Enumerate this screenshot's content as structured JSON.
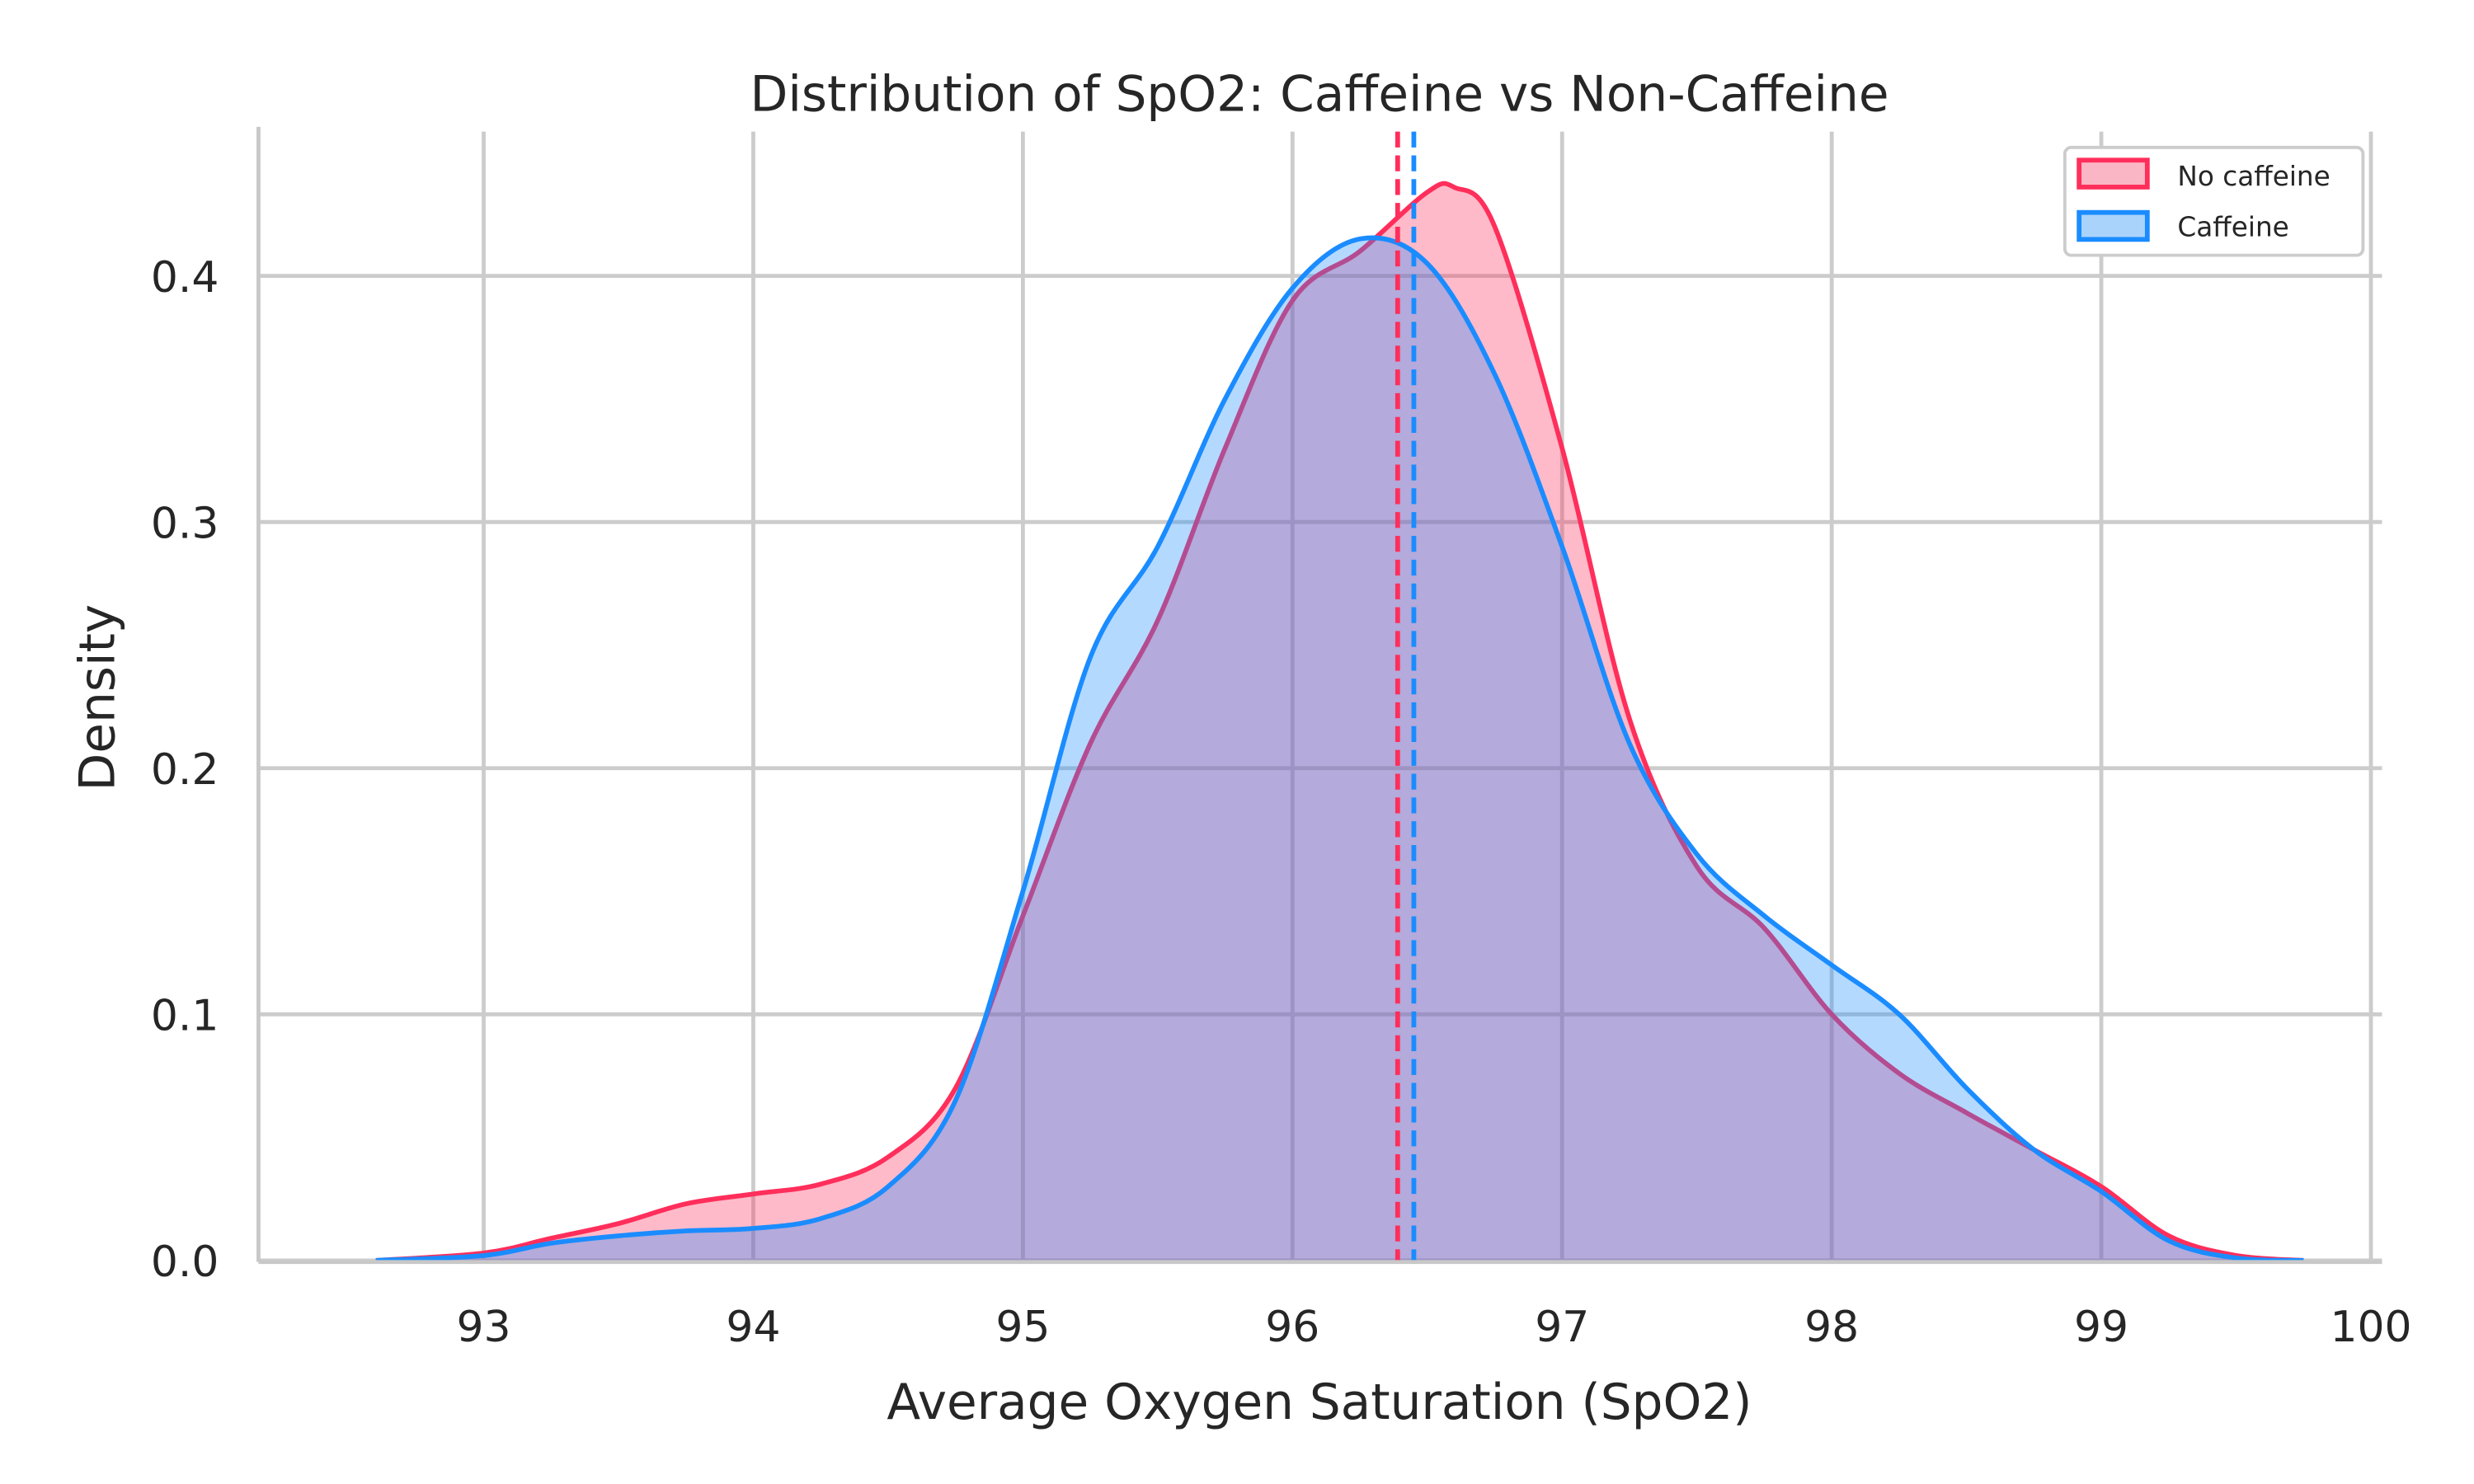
{
  "chart_data": {
    "type": "area",
    "title": "Distribution of SpO2: Caffeine vs Non-Caffeine",
    "xlabel": "Average Oxygen Saturation (SpO2)",
    "ylabel": "Density",
    "xlim": [
      92.17,
      100.03
    ],
    "ylim": [
      0,
      0.46
    ],
    "xticks": [
      "93",
      "94",
      "95",
      "96",
      "97",
      "98",
      "99",
      "100"
    ],
    "yticks": [
      "0.0",
      "0.1",
      "0.2",
      "0.3",
      "0.4"
    ],
    "grid": true,
    "legend_position": "top-right",
    "series": [
      {
        "name": "No caffeine",
        "color": "#ff2e5b",
        "fill": "#fbb6c5",
        "mean": 96.39,
        "x": [
          92.6,
          93,
          93.25,
          93.5,
          93.75,
          94,
          94.25,
          94.5,
          94.75,
          95,
          95.25,
          95.5,
          95.75,
          96,
          96.25,
          96.5,
          96.6,
          96.75,
          97,
          97.25,
          97.5,
          97.75,
          98,
          98.25,
          98.5,
          98.75,
          99,
          99.25,
          99.5,
          99.75
        ],
        "y": [
          0,
          0.003,
          0.009,
          0.015,
          0.023,
          0.027,
          0.031,
          0.042,
          0.07,
          0.14,
          0.21,
          0.26,
          0.33,
          0.39,
          0.41,
          0.434,
          0.436,
          0.42,
          0.33,
          0.22,
          0.16,
          0.135,
          0.1,
          0.076,
          0.06,
          0.045,
          0.03,
          0.01,
          0.002,
          0
        ]
      },
      {
        "name": "Caffeine",
        "color": "#1a8cff",
        "fill": "#aad3fb",
        "mean": 96.45,
        "x": [
          92.6,
          93,
          93.25,
          93.5,
          93.75,
          94,
          94.25,
          94.5,
          94.75,
          95,
          95.25,
          95.5,
          95.75,
          96,
          96.25,
          96.5,
          96.75,
          97,
          97.25,
          97.5,
          97.75,
          98,
          98.25,
          98.5,
          98.75,
          99,
          99.25,
          99.5,
          99.75
        ],
        "y": [
          0,
          0.002,
          0.007,
          0.01,
          0.012,
          0.013,
          0.017,
          0.03,
          0.065,
          0.15,
          0.245,
          0.29,
          0.35,
          0.395,
          0.415,
          0.405,
          0.36,
          0.29,
          0.21,
          0.165,
          0.14,
          0.12,
          0.1,
          0.07,
          0.045,
          0.028,
          0.008,
          0.001,
          0
        ]
      }
    ]
  }
}
